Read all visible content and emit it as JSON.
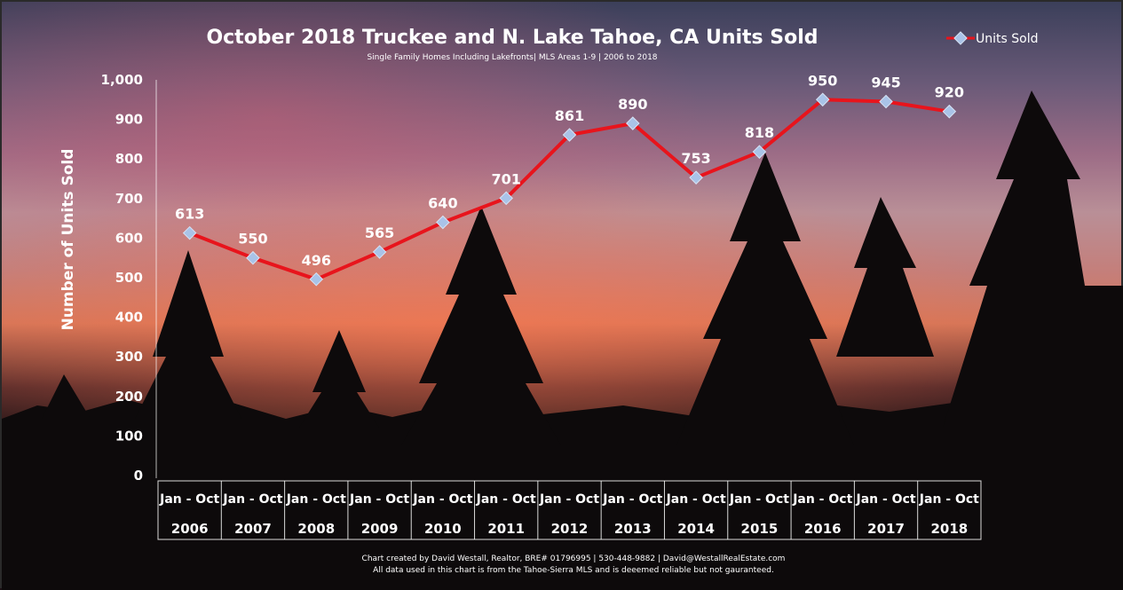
{
  "chart_data": {
    "type": "line",
    "title": "October 2018 Truckee and N. Lake Tahoe, CA Units Sold",
    "subtitle": "Single Family Homes Including Lakefronts| MLS Areas 1-9 | 2006 to 2018",
    "ylabel": "Number of Units Sold",
    "xlabel": "",
    "ylim": [
      0,
      1000
    ],
    "yticks": [
      "0",
      "100",
      "200",
      "300",
      "400",
      "500",
      "600",
      "700",
      "800",
      "900",
      "1,000"
    ],
    "ytick_values": [
      0,
      100,
      200,
      300,
      400,
      500,
      600,
      700,
      800,
      900,
      1000
    ],
    "grid": false,
    "legend_position": "top-right",
    "categories": [
      "2006",
      "2007",
      "2008",
      "2009",
      "2010",
      "2011",
      "2012",
      "2013",
      "2014",
      "2015",
      "2016",
      "2017",
      "2018"
    ],
    "category_sublabel": "Jan - Oct",
    "series": [
      {
        "name": "Units Sold",
        "color": "#e8141c",
        "marker_color": "#a9c3e8",
        "values": [
          613,
          550,
          496,
          565,
          640,
          701,
          861,
          890,
          753,
          818,
          950,
          945,
          920
        ],
        "labels": [
          "613",
          "550",
          "496",
          "565",
          "640",
          "701",
          "861",
          "890",
          "753",
          "818",
          "950",
          "945",
          "920"
        ]
      }
    ],
    "footer": [
      "Chart created by David Westall, Realtor, BRE# 01796995 | 530-448-9882 | David@WestallRealEstate.com",
      "All data used in this chart is from the Tahoe-Sierra MLS and is deeemed reliable but  not gauranteed."
    ]
  }
}
